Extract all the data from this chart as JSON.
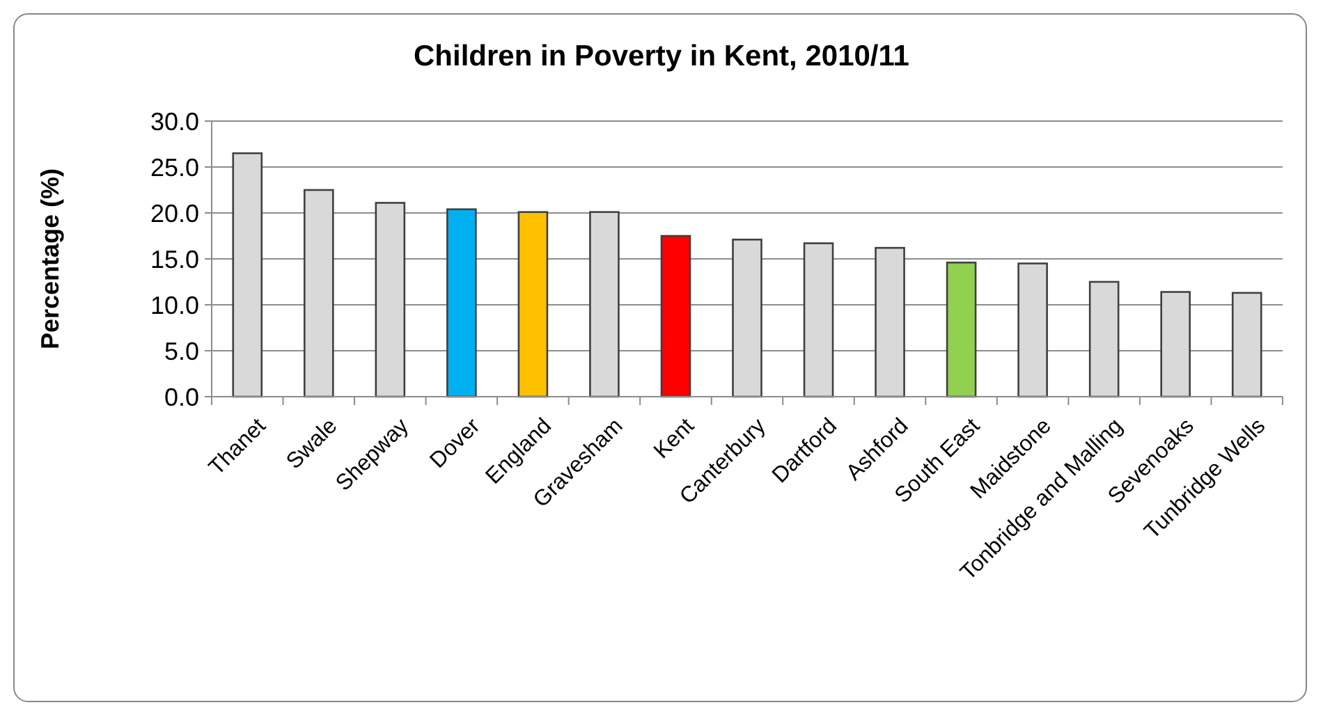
{
  "chart_data": {
    "type": "bar",
    "title": "Children in Poverty in Kent, 2010/11",
    "ylabel": "Percentage (%)",
    "categories": [
      "Thanet",
      "Swale",
      "Shepway",
      "Dover",
      "England",
      "Gravesham",
      "Kent",
      "Canterbury",
      "Dartford",
      "Ashford",
      "South East",
      "Maidstone",
      "Tonbridge and Malling",
      "Sevenoaks",
      "Tunbridge Wells"
    ],
    "values": [
      26.5,
      22.5,
      21.1,
      20.4,
      20.1,
      20.1,
      17.5,
      17.1,
      16.7,
      16.2,
      14.6,
      14.5,
      12.5,
      11.4,
      11.3
    ],
    "colors": [
      "#d9d9d9",
      "#d9d9d9",
      "#d9d9d9",
      "#00b0f0",
      "#ffc000",
      "#d9d9d9",
      "#ff0000",
      "#d9d9d9",
      "#d9d9d9",
      "#d9d9d9",
      "#92d050",
      "#d9d9d9",
      "#d9d9d9",
      "#d9d9d9",
      "#d9d9d9"
    ],
    "ylim": [
      0,
      30
    ],
    "yticks": [
      {
        "value": 0,
        "label": "0.0"
      },
      {
        "value": 5,
        "label": "5.0"
      },
      {
        "value": 10,
        "label": "10.0"
      },
      {
        "value": 15,
        "label": "15.0"
      },
      {
        "value": 20,
        "label": "20.0"
      },
      {
        "value": 25,
        "label": "25.0"
      },
      {
        "value": 30,
        "label": "30.0"
      }
    ],
    "grid": "y"
  }
}
